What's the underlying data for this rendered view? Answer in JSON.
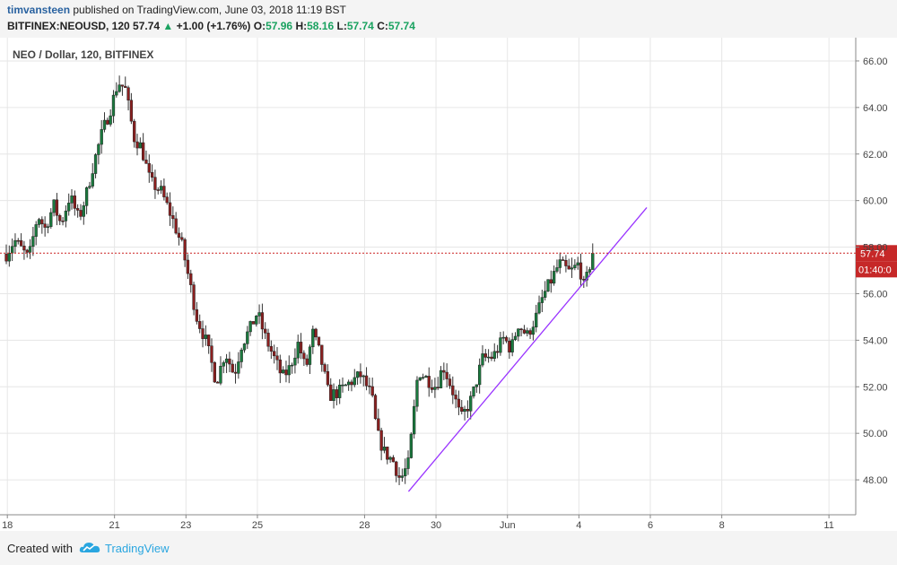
{
  "header": {
    "author": "timvansteen",
    "published": "published on TradingView.com, June 03, 2018 11:19 BST",
    "symbol_interval": "BITFINEX:NEOUSD, 120",
    "last": "57.74",
    "change_arrow": "▲",
    "change": "+1.00 (+1.76%)",
    "open_label": "O:",
    "open": "57.96",
    "high_label": "H:",
    "high": "58.16",
    "low_label": "L:",
    "low": "57.74",
    "close_label": "C:",
    "close": "57.74"
  },
  "footer": {
    "created_with": "Created with",
    "brand": "TradingView",
    "logo_icon": "tradingview-cloud-icon"
  },
  "colors": {
    "up": "#1a7a3e",
    "down": "#8b1f1f",
    "trendline": "#9933ff",
    "price_line": "#cc2222",
    "price_tag": "#c62828",
    "grid": "#e6e6e6"
  },
  "chart_data": {
    "type": "candlestick",
    "title": "NEO / Dollar, 120, BITFINEX",
    "xlabel": "",
    "ylabel": "",
    "ylim": [
      46.5,
      67.0
    ],
    "grid": true,
    "y_ticks": [
      "48.00",
      "50.00",
      "52.00",
      "54.00",
      "56.00",
      "58.00",
      "60.00",
      "62.00",
      "64.00",
      "66.00"
    ],
    "x_ticks": [
      "18",
      "21",
      "23",
      "25",
      "28",
      "30",
      "Jun",
      "4",
      "6",
      "8",
      "11"
    ],
    "x_tick_days": [
      18,
      21,
      23,
      25,
      28,
      30,
      32,
      34,
      36,
      38,
      41
    ],
    "x_axis_start_day": 17.97,
    "x_axis_end_day": 41.75,
    "last_price": "57.74",
    "countdown": "01:40:0",
    "trendline": {
      "start": [
        29.23,
        47.5
      ],
      "end": [
        35.9,
        59.7
      ]
    },
    "anchors": [
      [
        17.97,
        57.7
      ],
      [
        18.2,
        58.3
      ],
      [
        18.6,
        57.5
      ],
      [
        18.85,
        59.4
      ],
      [
        19.05,
        58.8
      ],
      [
        19.3,
        59.8
      ],
      [
        19.5,
        59.0
      ],
      [
        19.75,
        60.2
      ],
      [
        20.0,
        59.2
      ],
      [
        20.2,
        60.2
      ],
      [
        20.4,
        61.5
      ],
      [
        20.65,
        62.9
      ],
      [
        20.9,
        64.0
      ],
      [
        21.1,
        65.1
      ],
      [
        21.3,
        64.8
      ],
      [
        21.55,
        62.7
      ],
      [
        21.75,
        62.3
      ],
      [
        22.0,
        60.8
      ],
      [
        22.3,
        60.4
      ],
      [
        22.6,
        59.3
      ],
      [
        22.9,
        58.0
      ],
      [
        23.1,
        56.5
      ],
      [
        23.3,
        55.0
      ],
      [
        23.55,
        54.0
      ],
      [
        23.85,
        52.2
      ],
      [
        24.1,
        53.5
      ],
      [
        24.35,
        52.5
      ],
      [
        24.55,
        53.8
      ],
      [
        24.8,
        54.5
      ],
      [
        25.0,
        55.2
      ],
      [
        25.2,
        54.2
      ],
      [
        25.45,
        53.3
      ],
      [
        25.7,
        52.4
      ],
      [
        25.9,
        52.8
      ],
      [
        26.15,
        53.9
      ],
      [
        26.35,
        52.7
      ],
      [
        26.55,
        54.3
      ],
      [
        26.75,
        53.4
      ],
      [
        27.0,
        51.6
      ],
      [
        27.3,
        51.8
      ],
      [
        27.6,
        52.2
      ],
      [
        27.9,
        52.5
      ],
      [
        28.2,
        51.6
      ],
      [
        28.35,
        50.0
      ],
      [
        28.55,
        49.2
      ],
      [
        28.8,
        48.8
      ],
      [
        29.0,
        48.0
      ],
      [
        29.23,
        48.7
      ],
      [
        29.5,
        52.7
      ],
      [
        29.7,
        52.4
      ],
      [
        30.0,
        52.0
      ],
      [
        30.2,
        52.9
      ],
      [
        30.45,
        51.9
      ],
      [
        30.7,
        50.6
      ],
      [
        31.0,
        51.5
      ],
      [
        31.3,
        53.2
      ],
      [
        31.6,
        53.3
      ],
      [
        31.9,
        54.1
      ],
      [
        32.1,
        53.6
      ],
      [
        32.3,
        54.7
      ],
      [
        32.55,
        54.2
      ],
      [
        32.8,
        55.0
      ],
      [
        33.0,
        55.9
      ],
      [
        33.2,
        56.5
      ],
      [
        33.45,
        57.3
      ],
      [
        33.75,
        56.9
      ],
      [
        34.0,
        57.3
      ],
      [
        34.15,
        56.2
      ],
      [
        34.3,
        57.2
      ],
      [
        34.4,
        57.74
      ]
    ]
  }
}
